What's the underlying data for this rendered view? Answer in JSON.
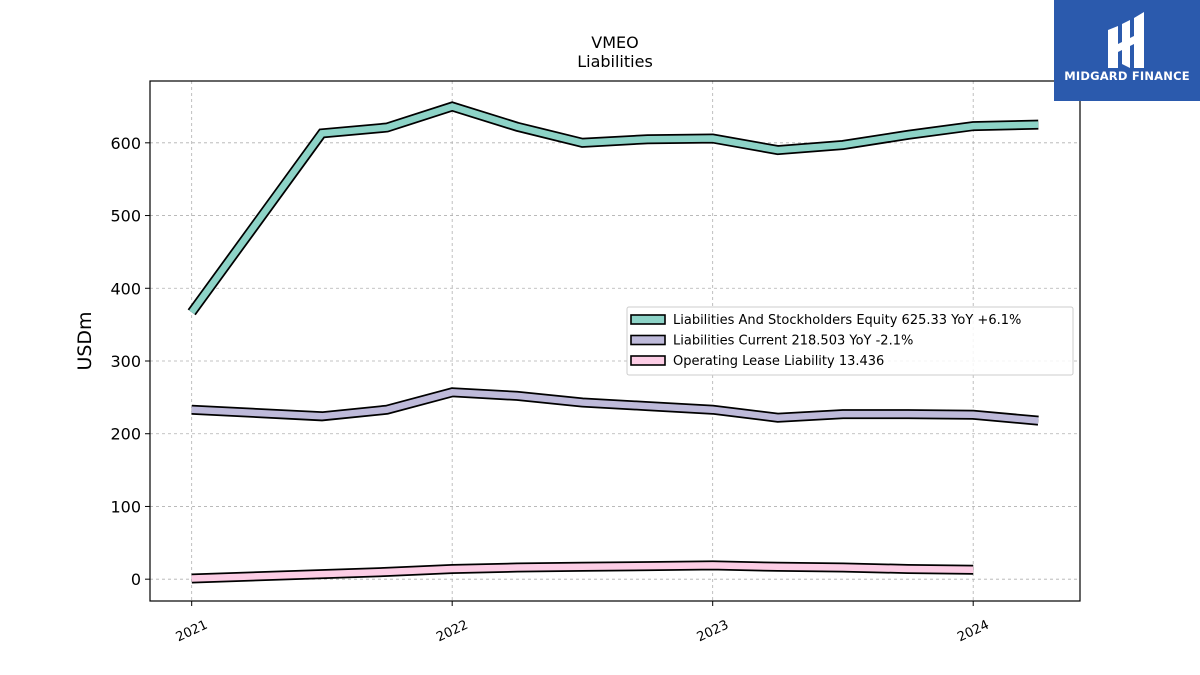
{
  "brand": {
    "name": "MIDGARD FINANCE",
    "logo_color": "#2b5aad"
  },
  "chart_data": {
    "type": "line",
    "title": "VMEO",
    "subtitle": "Liabilities",
    "ylabel": "USDm",
    "xlabel": "",
    "ylim": [
      -30,
      685
    ],
    "xlim": [
      2020.84,
      2024.41
    ],
    "yticks": [
      0,
      100,
      200,
      300,
      400,
      500,
      600
    ],
    "xticks": [
      2021,
      2022,
      2023,
      2024
    ],
    "xtick_labels": [
      "2021",
      "2022",
      "2023",
      "2024"
    ],
    "grid": true,
    "legend_position": "center-right",
    "series": [
      {
        "name": "Liabilities And Stockholders Equity",
        "legend_label": "Liabilities And Stockholders Equity  625.33 YoY +6.1%",
        "color": "#8dd3c7",
        "x": [
          2021.0,
          2021.5,
          2021.75,
          2022.0,
          2022.25,
          2022.5,
          2022.75,
          2023.0,
          2023.25,
          2023.5,
          2023.75,
          2024.0,
          2024.25
        ],
        "values": [
          367,
          613,
          621,
          650,
          622,
          600,
          605,
          606,
          590,
          597,
          611,
          623,
          625
        ]
      },
      {
        "name": "Liabilities Current",
        "legend_label": "Liabilities Current  218.503 YoY -2.1%",
        "color": "#bebada",
        "x": [
          2021.0,
          2021.5,
          2021.75,
          2022.0,
          2022.25,
          2022.5,
          2022.75,
          2023.0,
          2023.25,
          2023.5,
          2023.75,
          2024.0,
          2024.25
        ],
        "values": [
          233,
          224,
          233,
          257,
          252,
          243,
          238,
          233,
          222,
          227,
          227,
          226,
          218
        ]
      },
      {
        "name": "Operating Lease Liability",
        "legend_label": "Operating Lease Liability  13.436",
        "color": "#fccde5",
        "x": [
          2021.0,
          2021.5,
          2021.75,
          2022.0,
          2022.25,
          2022.5,
          2022.75,
          2023.0,
          2023.25,
          2023.5,
          2023.75,
          2024.0
        ],
        "values": [
          1,
          7,
          10,
          14,
          16,
          17,
          18,
          19,
          17,
          16,
          14,
          13
        ]
      }
    ]
  }
}
